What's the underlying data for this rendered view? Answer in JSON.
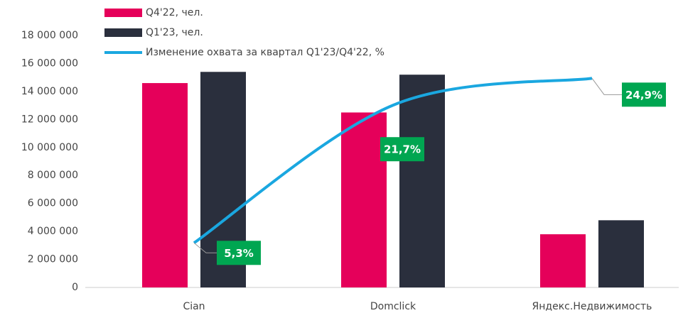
{
  "chart_data": {
    "type": "bar_line",
    "categories": [
      "Cian",
      "Domclick",
      "Яндекс.Недвижимость"
    ],
    "series": [
      {
        "name": "Q4'22, чел.",
        "color": "#e5005a",
        "values": [
          14600000,
          12500000,
          3800000
        ]
      },
      {
        "name": "Q1'23, чел.",
        "color": "#2a2f3d",
        "values": [
          15400000,
          15200000,
          4800000
        ]
      },
      {
        "name": "Изменение охвата за квартал Q1'23/Q4'22, %",
        "color": "#1aa7e0",
        "axis": "y2",
        "type": "line",
        "values": [
          5.3,
          21.7,
          24.9
        ],
        "value_labels": [
          "5,3%",
          "21,7%",
          "24,9%"
        ],
        "label_color": "#00a651"
      }
    ],
    "ylim": [
      0,
      18000000
    ],
    "yticks": [
      0,
      {
        "value": 2000000,
        "label": "2 000 000"
      },
      {
        "value": 4000000,
        "label": "4 000 000"
      },
      {
        "value": 6000000,
        "label": "6 000 000"
      },
      {
        "value": 8000000,
        "label": "8 000 000"
      },
      {
        "value": 10000000,
        "label": "10 000 000"
      },
      {
        "value": 12000000,
        "label": "12 000 000"
      },
      {
        "value": 14000000,
        "label": "14 000 000"
      },
      {
        "value": 16000000,
        "label": "16 000 000"
      },
      {
        "value": 18000000,
        "label": "18 000 000"
      }
    ],
    "y2lim": [
      0,
      30
    ],
    "grid": false
  }
}
